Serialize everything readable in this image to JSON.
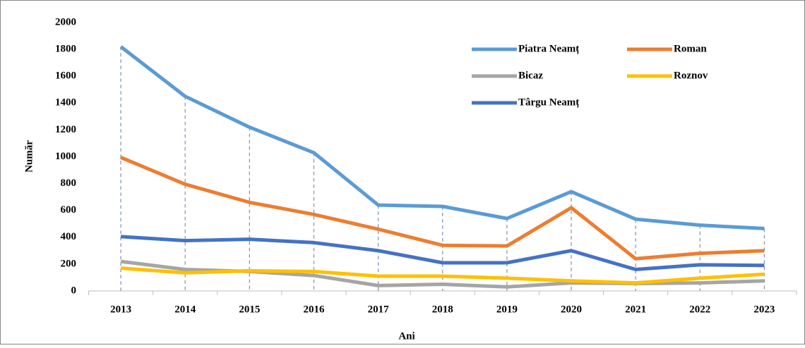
{
  "chart_data": {
    "type": "line",
    "x_label": "Ani",
    "y_label": "Număr",
    "categories": [
      "2013",
      "2014",
      "2015",
      "2016",
      "2017",
      "2018",
      "2019",
      "2020",
      "2021",
      "2022",
      "2023"
    ],
    "series": [
      {
        "name": "Piatra Neamț",
        "color": "#5b9bd5",
        "values": [
          1820,
          1450,
          1220,
          1030,
          640,
          630,
          540,
          740,
          535,
          490,
          465
        ]
      },
      {
        "name": "Roman",
        "color": "#ed7d31",
        "values": [
          995,
          795,
          660,
          570,
          460,
          340,
          335,
          620,
          240,
          280,
          300
        ]
      },
      {
        "name": "Bicaz",
        "color": "#a5a5a5",
        "values": [
          220,
          160,
          145,
          115,
          40,
          50,
          30,
          60,
          55,
          60,
          75
        ]
      },
      {
        "name": "Roznov",
        "color": "#ffc000",
        "values": [
          170,
          135,
          150,
          145,
          110,
          110,
          95,
          75,
          60,
          95,
          125
        ]
      },
      {
        "name": "Târgu Neamț",
        "color": "#4472c4",
        "values": [
          405,
          375,
          385,
          360,
          300,
          210,
          210,
          300,
          160,
          195,
          190
        ]
      }
    ],
    "ylim": [
      0,
      2000
    ],
    "yticks": [
      0,
      200,
      400,
      600,
      800,
      1000,
      1200,
      1400,
      1600,
      1800,
      2000
    ],
    "grid": false,
    "drop_lines": true,
    "legend": "top-right"
  }
}
